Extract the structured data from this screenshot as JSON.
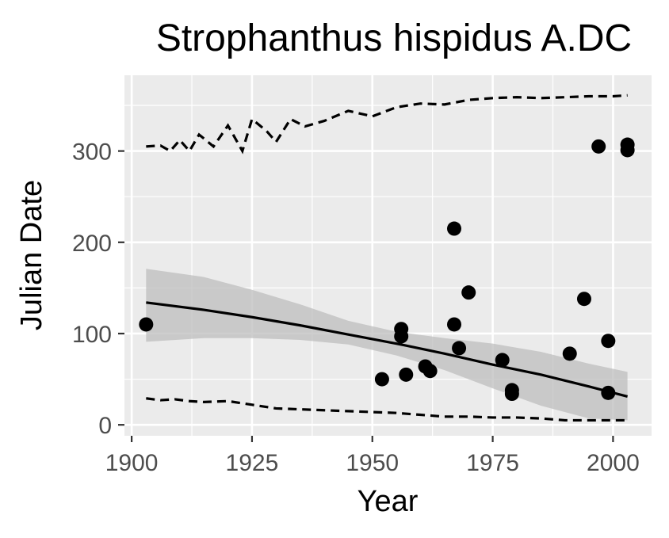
{
  "colors": {
    "panel": "#ebebeb",
    "grid": "#ffffff",
    "ribbon": "#bdbdbd",
    "line": "#000000",
    "tick": "#333333"
  },
  "chart_data": {
    "type": "scatter",
    "title": "Strophanthus hispidus A.DC",
    "xlabel": "Year",
    "ylabel": "Julian Date",
    "xlim": [
      1898.5,
      2008
    ],
    "ylim": [
      -12,
      383
    ],
    "grid": true,
    "x_ticks": [
      1900,
      1925,
      1950,
      1975,
      2000
    ],
    "y_ticks": [
      0,
      100,
      200,
      300
    ],
    "points": [
      {
        "x": 1903,
        "y": 110
      },
      {
        "x": 1952,
        "y": 50
      },
      {
        "x": 1956,
        "y": 105
      },
      {
        "x": 1956,
        "y": 97
      },
      {
        "x": 1957,
        "y": 55
      },
      {
        "x": 1961,
        "y": 64
      },
      {
        "x": 1962,
        "y": 59
      },
      {
        "x": 1967,
        "y": 215
      },
      {
        "x": 1967,
        "y": 110
      },
      {
        "x": 1968,
        "y": 84
      },
      {
        "x": 1970,
        "y": 145
      },
      {
        "x": 1977,
        "y": 71
      },
      {
        "x": 1979,
        "y": 38
      },
      {
        "x": 1979,
        "y": 34
      },
      {
        "x": 1991,
        "y": 78
      },
      {
        "x": 1994,
        "y": 138
      },
      {
        "x": 1997,
        "y": 305
      },
      {
        "x": 1999,
        "y": 92
      },
      {
        "x": 1999,
        "y": 35
      },
      {
        "x": 2003,
        "y": 307
      },
      {
        "x": 2003,
        "y": 301
      }
    ],
    "fit_line": [
      {
        "x": 1903,
        "y": 134
      },
      {
        "x": 1915,
        "y": 126
      },
      {
        "x": 1925,
        "y": 118
      },
      {
        "x": 1935,
        "y": 109
      },
      {
        "x": 1945,
        "y": 99
      },
      {
        "x": 1955,
        "y": 89
      },
      {
        "x": 1965,
        "y": 78
      },
      {
        "x": 1975,
        "y": 66
      },
      {
        "x": 1985,
        "y": 55
      },
      {
        "x": 1995,
        "y": 42
      },
      {
        "x": 2003,
        "y": 31
      }
    ],
    "confidence_band": [
      {
        "x": 1903,
        "lower": 91,
        "upper": 171
      },
      {
        "x": 1915,
        "lower": 95,
        "upper": 162
      },
      {
        "x": 1925,
        "lower": 95,
        "upper": 148
      },
      {
        "x": 1935,
        "lower": 93,
        "upper": 132
      },
      {
        "x": 1945,
        "lower": 88,
        "upper": 114
      },
      {
        "x": 1955,
        "lower": 76,
        "upper": 102
      },
      {
        "x": 1965,
        "lower": 60,
        "upper": 95
      },
      {
        "x": 1975,
        "lower": 40,
        "upper": 89
      },
      {
        "x": 1985,
        "lower": 21,
        "upper": 80
      },
      {
        "x": 1995,
        "lower": 7,
        "upper": 67
      },
      {
        "x": 2003,
        "lower": 5,
        "upper": 58
      }
    ],
    "upper_dashed": [
      {
        "x": 1903,
        "y": 305
      },
      {
        "x": 1906,
        "y": 306
      },
      {
        "x": 1908,
        "y": 300
      },
      {
        "x": 1910,
        "y": 312
      },
      {
        "x": 1912,
        "y": 300
      },
      {
        "x": 1914,
        "y": 318
      },
      {
        "x": 1917,
        "y": 305
      },
      {
        "x": 1920,
        "y": 328
      },
      {
        "x": 1923,
        "y": 300
      },
      {
        "x": 1925,
        "y": 335
      },
      {
        "x": 1928,
        "y": 322
      },
      {
        "x": 1930,
        "y": 310
      },
      {
        "x": 1933,
        "y": 335
      },
      {
        "x": 1936,
        "y": 327
      },
      {
        "x": 1940,
        "y": 333
      },
      {
        "x": 1945,
        "y": 344
      },
      {
        "x": 1950,
        "y": 338
      },
      {
        "x": 1955,
        "y": 348
      },
      {
        "x": 1960,
        "y": 352
      },
      {
        "x": 1965,
        "y": 351
      },
      {
        "x": 1970,
        "y": 356
      },
      {
        "x": 1975,
        "y": 358
      },
      {
        "x": 1980,
        "y": 359
      },
      {
        "x": 1985,
        "y": 358
      },
      {
        "x": 1990,
        "y": 359
      },
      {
        "x": 1995,
        "y": 360
      },
      {
        "x": 2000,
        "y": 360
      },
      {
        "x": 2003,
        "y": 361
      }
    ],
    "lower_dashed": [
      {
        "x": 1903,
        "y": 29
      },
      {
        "x": 1906,
        "y": 27
      },
      {
        "x": 1909,
        "y": 28
      },
      {
        "x": 1912,
        "y": 26
      },
      {
        "x": 1915,
        "y": 25
      },
      {
        "x": 1920,
        "y": 26
      },
      {
        "x": 1925,
        "y": 22
      },
      {
        "x": 1930,
        "y": 18
      },
      {
        "x": 1935,
        "y": 17
      },
      {
        "x": 1940,
        "y": 16
      },
      {
        "x": 1945,
        "y": 15
      },
      {
        "x": 1950,
        "y": 14
      },
      {
        "x": 1955,
        "y": 13
      },
      {
        "x": 1960,
        "y": 11
      },
      {
        "x": 1965,
        "y": 9
      },
      {
        "x": 1970,
        "y": 9
      },
      {
        "x": 1975,
        "y": 8
      },
      {
        "x": 1980,
        "y": 8
      },
      {
        "x": 1985,
        "y": 7
      },
      {
        "x": 1990,
        "y": 5
      },
      {
        "x": 1995,
        "y": 5
      },
      {
        "x": 2000,
        "y": 5
      },
      {
        "x": 2003,
        "y": 5
      }
    ]
  }
}
